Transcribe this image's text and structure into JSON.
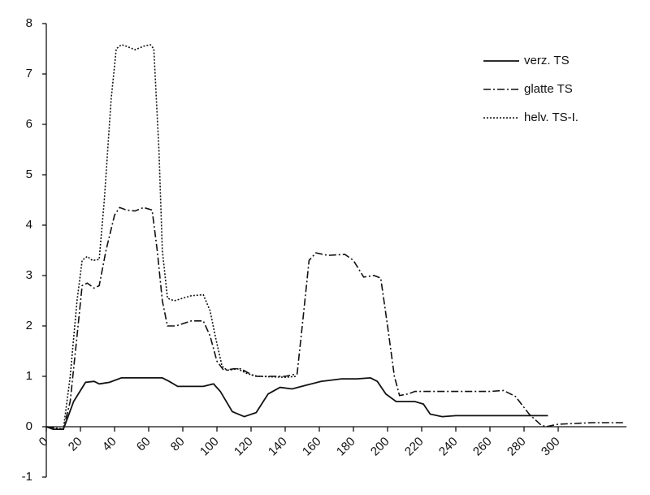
{
  "chart_data": {
    "type": "line",
    "xlim": [
      0,
      340
    ],
    "ylim": [
      -1,
      8
    ],
    "xticks": [
      0,
      20,
      40,
      60,
      80,
      100,
      120,
      140,
      160,
      180,
      200,
      220,
      240,
      260,
      280,
      300
    ],
    "yticks": [
      -1,
      0,
      1,
      2,
      3,
      4,
      5,
      6,
      7,
      8
    ],
    "grid": false,
    "legend": "upper right",
    "series": [
      {
        "name": "verz. TS",
        "color": "#111111",
        "style": "solid",
        "x": [
          0,
          4,
          10,
          16,
          23,
          28,
          31,
          37,
          44,
          68,
          72,
          77,
          92,
          98,
          102,
          109,
          116,
          123,
          130,
          137,
          144,
          161,
          173,
          182,
          190,
          194,
          199,
          205,
          216,
          221,
          225,
          232,
          240,
          294
        ],
        "values": [
          0,
          -0.05,
          -0.05,
          0.5,
          0.88,
          0.9,
          0.85,
          0.88,
          0.97,
          0.97,
          0.9,
          0.8,
          0.8,
          0.85,
          0.7,
          0.3,
          0.2,
          0.28,
          0.65,
          0.78,
          0.75,
          0.9,
          0.95,
          0.95,
          0.97,
          0.9,
          0.65,
          0.5,
          0.5,
          0.45,
          0.25,
          0.2,
          0.22,
          0.22
        ]
      },
      {
        "name": "glatte TS",
        "color": "#111111",
        "style": "dashdot",
        "x": [
          0,
          10,
          14,
          18,
          21,
          24,
          28,
          31,
          35,
          40,
          43,
          47,
          52,
          57,
          62,
          65,
          68,
          71,
          76,
          85,
          92,
          96,
          100,
          104,
          110,
          114,
          122,
          130,
          140,
          147,
          150,
          154,
          158,
          165,
          175,
          180,
          186,
          192,
          196,
          200,
          204,
          207,
          212,
          216,
          260,
          268,
          275,
          283,
          290,
          293,
          300,
          320,
          339
        ],
        "values": [
          0,
          -0.05,
          0.5,
          1.8,
          2.8,
          2.85,
          2.75,
          2.8,
          3.5,
          4.2,
          4.35,
          4.3,
          4.28,
          4.35,
          4.3,
          3.5,
          2.5,
          2.0,
          2.0,
          2.1,
          2.1,
          1.8,
          1.3,
          1.12,
          1.15,
          1.15,
          1.0,
          1.0,
          1.0,
          1.05,
          2.0,
          3.3,
          3.45,
          3.4,
          3.42,
          3.3,
          2.97,
          3.0,
          2.95,
          2.0,
          1.0,
          0.62,
          0.65,
          0.7,
          0.7,
          0.72,
          0.6,
          0.25,
          0.03,
          0.0,
          0.05,
          0.08,
          0.08
        ]
      },
      {
        "name": "helv. TS-I.",
        "color": "#111111",
        "style": "dotted",
        "x": [
          0,
          10,
          14,
          18,
          21,
          24,
          27,
          31,
          34,
          38,
          41,
          44,
          47,
          52,
          57,
          61,
          63,
          66,
          68,
          71,
          75,
          85,
          92,
          96,
          99,
          103,
          106,
          112,
          118,
          124,
          140,
          147
        ],
        "values": [
          0,
          -0.05,
          1.0,
          2.5,
          3.3,
          3.38,
          3.3,
          3.32,
          4.5,
          6.5,
          7.5,
          7.58,
          7.55,
          7.48,
          7.55,
          7.58,
          7.5,
          5.5,
          3.5,
          2.55,
          2.5,
          2.6,
          2.62,
          2.3,
          1.8,
          1.2,
          1.12,
          1.15,
          1.05,
          1.0,
          0.98,
          1.0
        ]
      }
    ]
  }
}
